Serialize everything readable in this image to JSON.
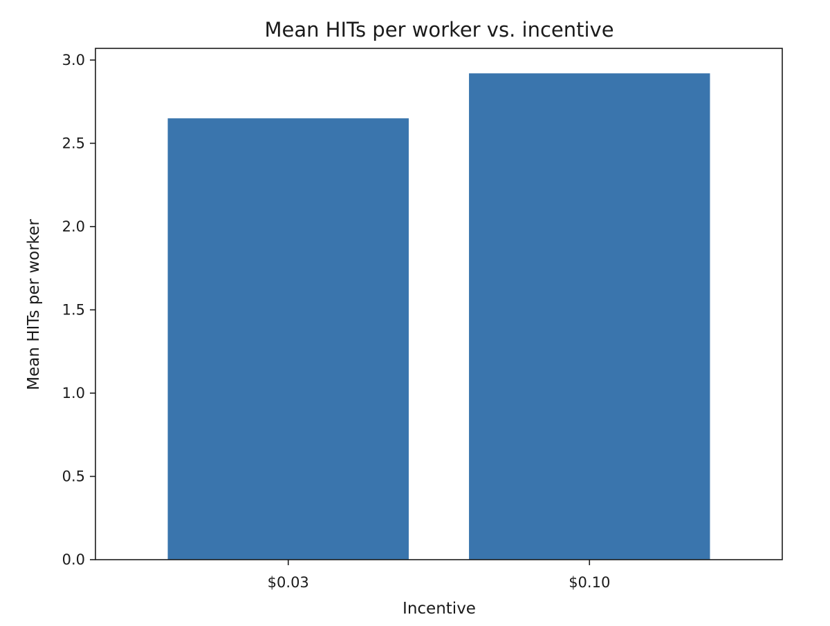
{
  "chart_data": {
    "type": "bar",
    "title": "Mean HITs per worker vs. incentive",
    "xlabel": "Incentive",
    "ylabel": "Mean HITs per worker",
    "categories": [
      "$0.03",
      "$0.10"
    ],
    "values": [
      2.65,
      2.92
    ],
    "ylim": [
      0,
      3.07
    ],
    "yticks": [
      0.0,
      0.5,
      1.0,
      1.5,
      2.0,
      2.5,
      3.0
    ],
    "ytick_labels": [
      "0.0",
      "0.5",
      "1.0",
      "1.5",
      "2.0",
      "2.5",
      "3.0"
    ],
    "grid": false,
    "legend": "none",
    "bar_color": "#3a75ad"
  }
}
